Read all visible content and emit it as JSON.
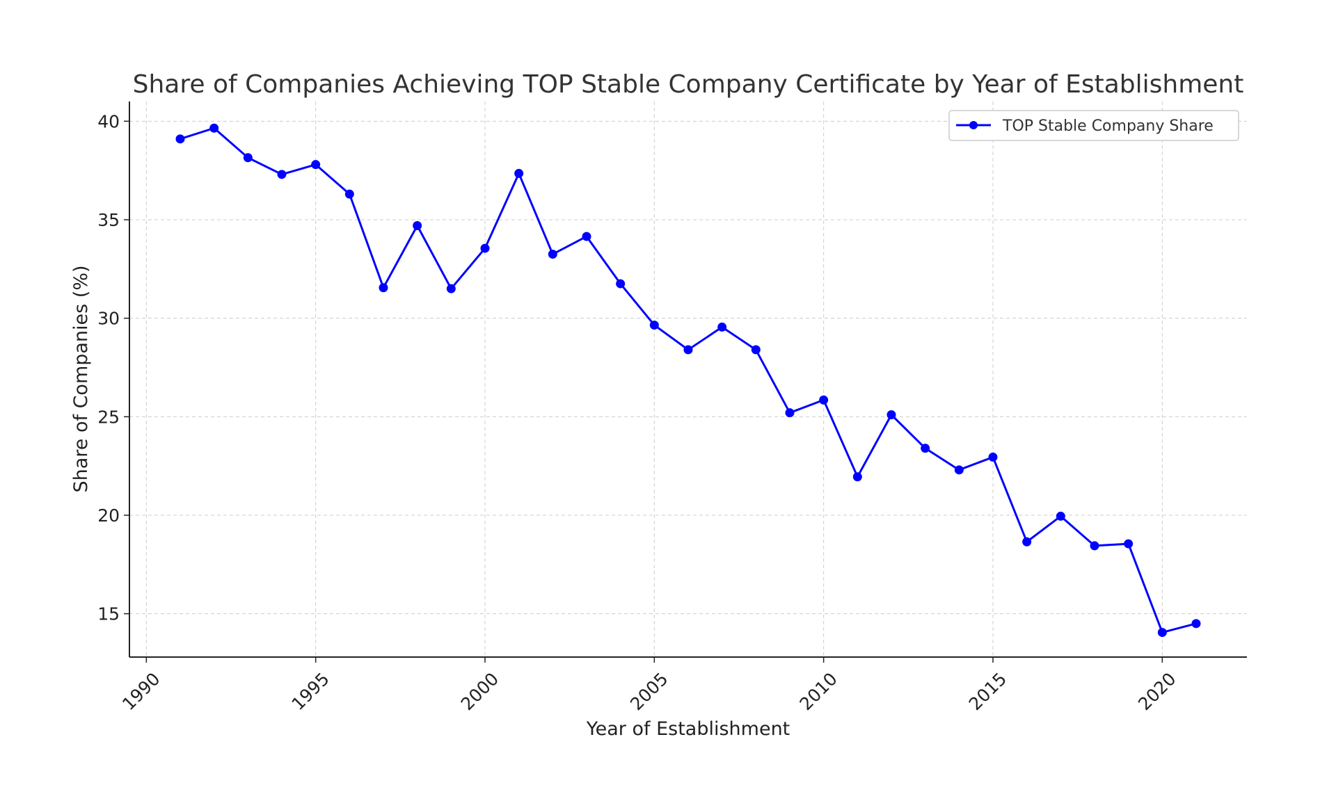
{
  "chart_data": {
    "type": "line",
    "title": "Share of Companies Achieving TOP Stable Company Certificate by Year of Establishment",
    "xlabel": "Year of Establishment",
    "ylabel": "Share of Companies (%)",
    "xlim": [
      1989.5,
      2022.5
    ],
    "ylim": [
      12.8,
      41.0
    ],
    "xticks": [
      1990,
      1995,
      2000,
      2005,
      2010,
      2015,
      2020
    ],
    "yticks": [
      15,
      20,
      25,
      30,
      35,
      40
    ],
    "grid": true,
    "legend_position": "top-right",
    "series": [
      {
        "name": "TOP Stable Company Share",
        "color": "#0000ff",
        "x": [
          1991,
          1992,
          1993,
          1994,
          1995,
          1996,
          1997,
          1998,
          1999,
          2000,
          2001,
          2002,
          2003,
          2004,
          2005,
          2006,
          2007,
          2008,
          2009,
          2010,
          2011,
          2012,
          2013,
          2014,
          2015,
          2016,
          2017,
          2018,
          2019,
          2020,
          2021
        ],
        "values": [
          39.1,
          39.65,
          38.15,
          37.3,
          37.8,
          36.3,
          31.55,
          34.7,
          31.5,
          33.55,
          37.35,
          33.25,
          34.15,
          31.75,
          29.65,
          28.4,
          29.55,
          28.4,
          25.2,
          25.85,
          21.95,
          25.1,
          23.4,
          22.3,
          22.95,
          18.65,
          19.95,
          18.45,
          18.55,
          14.05,
          14.5
        ]
      }
    ]
  }
}
